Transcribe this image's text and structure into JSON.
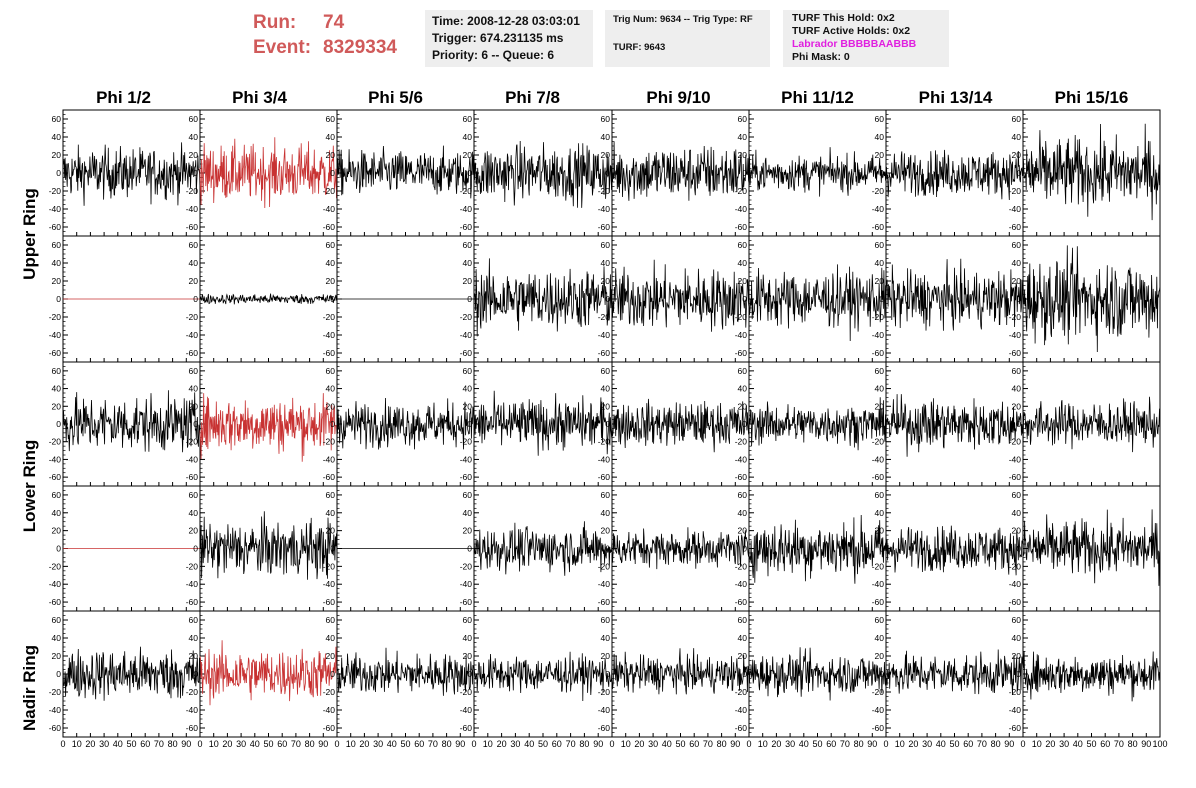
{
  "run": {
    "run_label": "Run:",
    "run_value": "74",
    "event_label": "Event:",
    "event_value": "8329334"
  },
  "info": {
    "time": "Time: 2008-12-28 03:03:01",
    "trigger": "Trigger: 674.231135 ms",
    "priority": "Priority: 6 -- Queue: 6",
    "trig_num": "Trig Num: 9634 -- Trig Type: RF",
    "turf": "TURF: 9643",
    "turf_this_hold": "TURF This Hold: 0x2",
    "turf_active_holds": "TURF Active Holds: 0x2",
    "labrador": "Labrador BBBBBAABBB",
    "phi_mask": "Phi Mask: 0"
  },
  "colors": {
    "trace_default": "#000000",
    "trace_highlight": "#c83232",
    "run_text": "#d05a5a",
    "labrador_text": "#e020e0",
    "info_box_bg": "#eeeeee"
  },
  "phi_headers": [
    "Phi 1/2",
    "Phi 3/4",
    "Phi 5/6",
    "Phi 7/8",
    "Phi 9/10",
    "Phi 11/12",
    "Phi 13/14",
    "Phi 15/16"
  ],
  "ring_labels": {
    "upper": "Upper Ring",
    "lower": "Lower Ring",
    "nadir": "Nadir Ring"
  },
  "chart_data": {
    "type": "line",
    "grid": false,
    "xlim": [
      0,
      100
    ],
    "ylim": [
      -70,
      70
    ],
    "y_ticks": [
      60,
      40,
      20,
      0,
      -20,
      -40,
      -60
    ],
    "x_tick_labels": [
      "0",
      "10",
      "20",
      "30",
      "40",
      "50",
      "60",
      "70",
      "80",
      "90",
      "100"
    ],
    "rows": [
      "Upper Ring",
      "Upper Ring",
      "Lower Ring",
      "Lower Ring",
      "Nadir Ring"
    ],
    "panels": [
      [
        "noise-25",
        "red-noise-28",
        "noise-22",
        "noise-28",
        "noise-28",
        "noise-18",
        "noise-22",
        "noise-35"
      ],
      [
        "red-flat",
        "noise-5",
        "flat",
        "noise-30",
        "noise-30",
        "noise-28",
        "noise-28",
        "noise-40"
      ],
      [
        "noise-28",
        "red-noise-28",
        "noise-22",
        "noise-25",
        "noise-22",
        "noise-20",
        "noise-25",
        "noise-22"
      ],
      [
        "red-flat",
        "noise-28",
        "flat",
        "noise-22",
        "noise-18",
        "noise-28",
        "noise-22",
        "noise-28"
      ],
      [
        "noise-25",
        "red-noise-25",
        "noise-20",
        "noise-18",
        "noise-18",
        "noise-20",
        "noise-20",
        "noise-20"
      ]
    ]
  }
}
